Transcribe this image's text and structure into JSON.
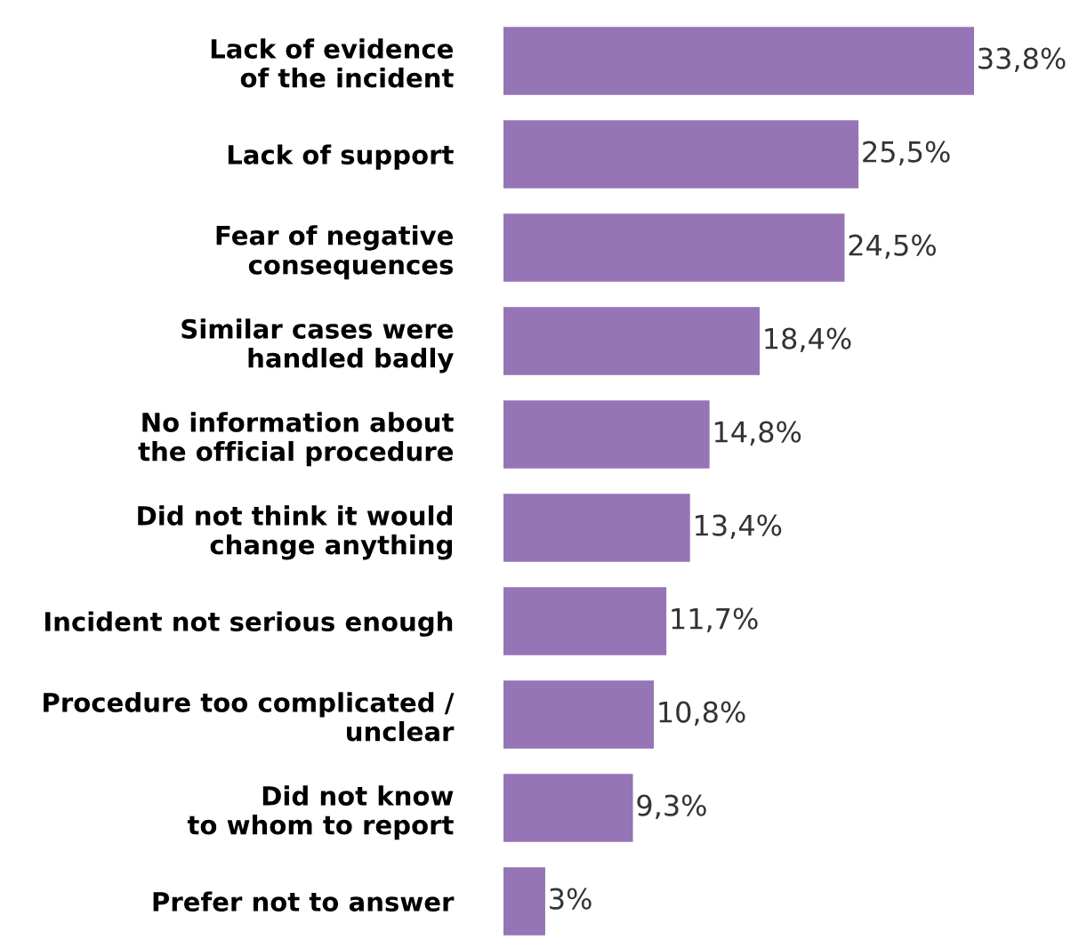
{
  "chart_data": {
    "type": "bar",
    "orientation": "horizontal",
    "categories": [
      "Lack of evidence\nof the incident",
      "Lack of support",
      "Fear of negative\nconsequences",
      "Similar cases were\nhandled badly",
      "No information about\nthe official procedure",
      "Did not think it would\nchange anything",
      "Incident not serious enough",
      "Procedure too complicated /\nunclear",
      "Did not know\nto whom to report",
      "Prefer not to answer"
    ],
    "values": [
      33.8,
      25.5,
      24.5,
      18.4,
      14.8,
      13.4,
      11.7,
      10.8,
      9.3,
      3
    ],
    "value_labels": [
      "33,8%",
      "25,5%",
      "24,5%",
      "18,4%",
      "14,8%",
      "13,4%",
      "11,7%",
      "10,8%",
      "9,3%",
      "3%"
    ],
    "color": "#9575b5",
    "grid": false,
    "legend": false
  }
}
